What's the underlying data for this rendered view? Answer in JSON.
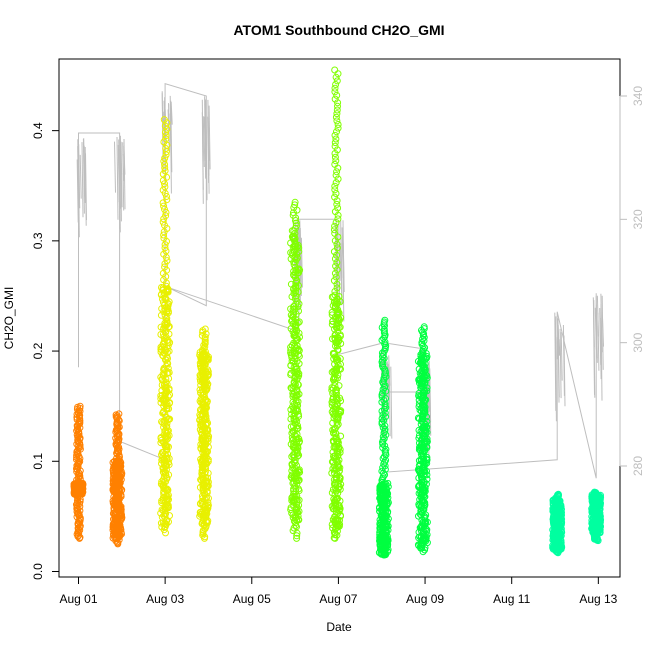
{
  "chart_data": {
    "type": "scatter",
    "title": "ATOM1 Southbound CH2O_GMI",
    "xlabel": "Date",
    "ylabel": "CH2O_GMI",
    "x_tick_labels": [
      "Aug 01",
      "Aug 03",
      "Aug 05",
      "Aug 07",
      "Aug 09",
      "Aug 11",
      "Aug 13"
    ],
    "x_tick_days": [
      1,
      3,
      5,
      7,
      9,
      11,
      13
    ],
    "xlim_days": [
      0.55,
      13.5
    ],
    "ylim": [
      -0.005,
      0.465
    ],
    "y_ticks": [
      0.0,
      0.1,
      0.2,
      0.3,
      0.4
    ],
    "y_tick_labels": [
      "0.0",
      "0.1",
      "0.2",
      "0.3",
      "0.4"
    ],
    "y2_ticks": [
      280,
      300,
      320,
      340
    ],
    "y2_tick_labels": [
      "280",
      "300",
      "320",
      "340"
    ],
    "y2_lim": [
      262,
      346
    ],
    "y2_color": "#bebebe",
    "grid": false,
    "legend": "none",
    "series": [
      {
        "color": "#ff8000",
        "clusters": [
          {
            "day": 1.0,
            "ymin": 0.03,
            "ymax": 0.15,
            "dense": [
              0.07,
              0.08
            ]
          },
          {
            "day": 1.9,
            "ymin": 0.025,
            "ymax": 0.143,
            "dense": [
              0.03,
              0.1
            ]
          }
        ]
      },
      {
        "color": "#e8f000",
        "clusters": [
          {
            "day": 3.0,
            "ymin": 0.035,
            "ymax": 0.41,
            "dense": [
              0.04,
              0.26
            ]
          },
          {
            "day": 3.9,
            "ymin": 0.03,
            "ymax": 0.22,
            "dense": [
              0.04,
              0.2
            ]
          }
        ]
      },
      {
        "color": "#80ff00",
        "clusters": [
          {
            "day": 6.0,
            "ymin": 0.03,
            "ymax": 0.335,
            "dense": [
              0.04,
              0.31
            ]
          },
          {
            "day": 6.95,
            "ymin": 0.03,
            "ymax": 0.455,
            "dense": [
              0.03,
              0.25
            ]
          }
        ]
      },
      {
        "color": "#00ff40",
        "clusters": [
          {
            "day": 8.05,
            "ymin": 0.015,
            "ymax": 0.228,
            "dense": [
              0.015,
              0.08
            ]
          },
          {
            "day": 8.95,
            "ymin": 0.018,
            "ymax": 0.222,
            "dense": [
              0.02,
              0.2
            ]
          }
        ]
      },
      {
        "color": "#00ffa0",
        "clusters": [
          {
            "day": 12.05,
            "ymin": 0.017,
            "ymax": 0.07,
            "dense": [
              0.02,
              0.065
            ]
          },
          {
            "day": 12.95,
            "ymin": 0.028,
            "ymax": 0.072,
            "dense": [
              0.035,
              0.07
            ]
          }
        ]
      }
    ],
    "secondary_line": {
      "color": "#bebebe",
      "points": [
        [
          1.0,
          296
        ],
        [
          1.0,
          334
        ],
        [
          1.95,
          334
        ],
        [
          1.95,
          300
        ],
        [
          1.95,
          284
        ],
        [
          3.0,
          281
        ],
        [
          3.0,
          342
        ],
        [
          3.95,
          340
        ],
        [
          3.95,
          306
        ],
        [
          3.05,
          309
        ],
        [
          6.0,
          302
        ],
        [
          6.05,
          320
        ],
        [
          6.95,
          320
        ],
        [
          6.95,
          298
        ],
        [
          8.05,
          300
        ],
        [
          8.95,
          299
        ],
        [
          8.95,
          292
        ],
        [
          8.05,
          292
        ],
        [
          8.05,
          279
        ],
        [
          12.05,
          281
        ],
        [
          12.05,
          305
        ],
        [
          12.95,
          278
        ],
        [
          12.95,
          308
        ]
      ]
    }
  }
}
